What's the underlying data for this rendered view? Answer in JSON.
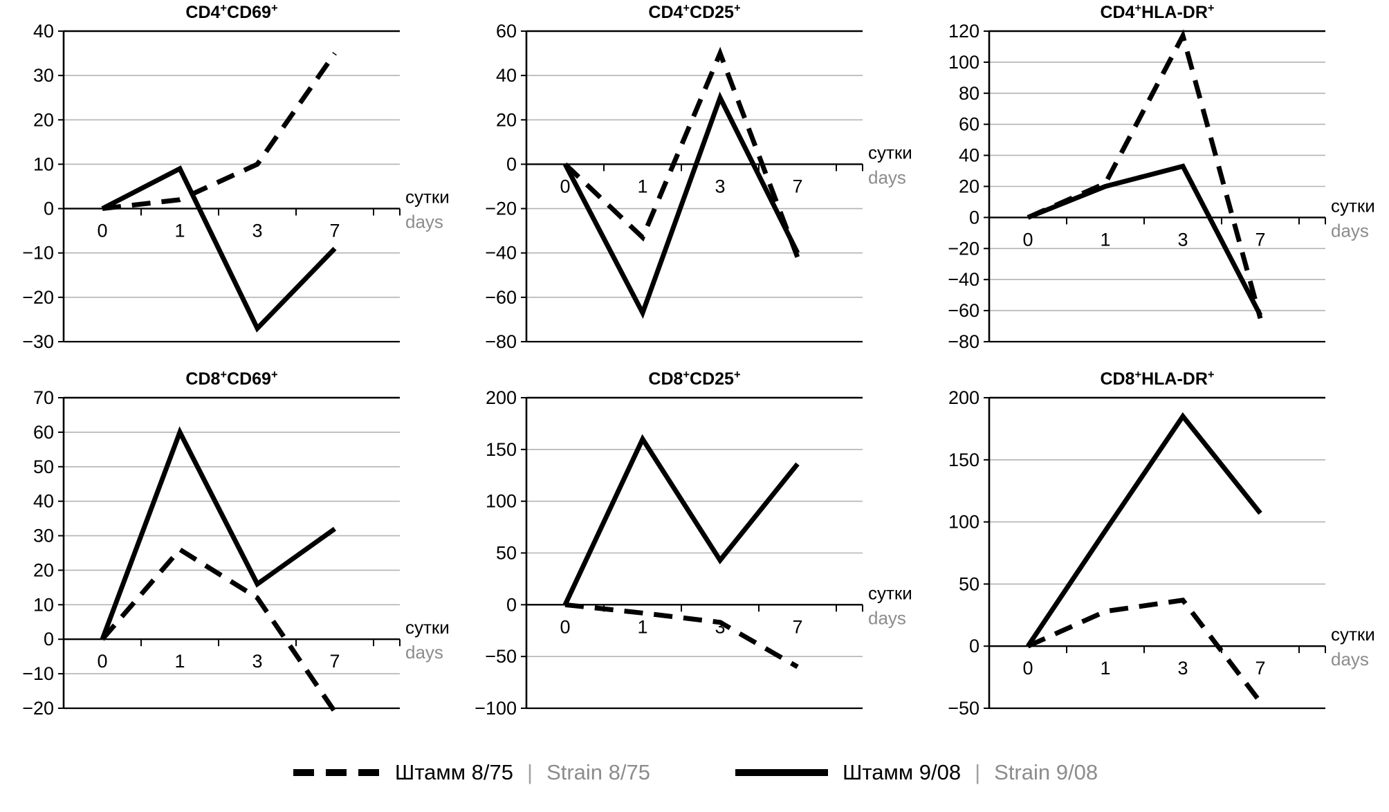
{
  "figure": {
    "background": "#ffffff"
  },
  "colors": {
    "line": "#000000",
    "grid": "#b3b3b3",
    "axis": "#000000",
    "muted": "#8c8c8c"
  },
  "axis_label": {
    "ru": "сутки",
    "en": "days"
  },
  "legend": [
    {
      "style": "dashed",
      "ru": "Штамм 8/75",
      "sep": "|",
      "en": "Strain 8/75"
    },
    {
      "style": "solid",
      "ru": "Штамм 9/08",
      "sep": "|",
      "en": "Strain 9/08"
    }
  ],
  "chart_data": [
    {
      "type": "line",
      "title": "CD4^+CD69^+",
      "categories": [
        "0",
        "1",
        "3",
        "7"
      ],
      "ylim": [
        -30,
        40
      ],
      "ystep": 10,
      "xlabel_ru": "сутки",
      "xlabel_en": "days",
      "grid": true,
      "legend_position": "bottom-shared",
      "series": [
        {
          "name": "Штамм 8/75 / Strain 8/75",
          "style": "dashed",
          "values": [
            0,
            2,
            10,
            35
          ]
        },
        {
          "name": "Штамм 9/08 / Strain 9/08",
          "style": "solid",
          "values": [
            0,
            9,
            -27,
            -9
          ]
        }
      ]
    },
    {
      "type": "line",
      "title": "CD4^+CD25^+",
      "categories": [
        "0",
        "1",
        "3",
        "7"
      ],
      "ylim": [
        -80,
        60
      ],
      "ystep": 20,
      "xlabel_ru": "сутки",
      "xlabel_en": "days",
      "grid": true,
      "legend_position": "bottom-shared",
      "series": [
        {
          "name": "Штамм 8/75 / Strain 8/75",
          "style": "dashed",
          "values": [
            0,
            -33,
            50,
            -42
          ]
        },
        {
          "name": "Штамм 9/08 / Strain 9/08",
          "style": "solid",
          "values": [
            0,
            -67,
            30,
            -40
          ]
        }
      ]
    },
    {
      "type": "line",
      "title": "CD4^+HLA-DR^+",
      "categories": [
        "0",
        "1",
        "3",
        "7"
      ],
      "ylim": [
        -80,
        120
      ],
      "ystep": 20,
      "xlabel_ru": "сутки",
      "xlabel_en": "days",
      "grid": true,
      "legend_position": "bottom-shared",
      "series": [
        {
          "name": "Штамм 8/75 / Strain 8/75",
          "style": "dashed",
          "values": [
            0,
            22,
            117,
            -65
          ]
        },
        {
          "name": "Штамм 9/08 / Strain 9/08",
          "style": "solid",
          "values": [
            0,
            20,
            33,
            -63
          ]
        }
      ]
    },
    {
      "type": "line",
      "title": "CD8^+CD69^+",
      "categories": [
        "0",
        "1",
        "3",
        "7"
      ],
      "ylim": [
        -20,
        70
      ],
      "ystep": 10,
      "xlabel_ru": "сутки",
      "xlabel_en": "days",
      "grid": true,
      "legend_position": "bottom-shared",
      "series": [
        {
          "name": "Штамм 8/75 / Strain 8/75",
          "style": "dashed",
          "values": [
            0,
            26,
            12,
            -21
          ]
        },
        {
          "name": "Штамм 9/08 / Strain 9/08",
          "style": "solid",
          "values": [
            0,
            60,
            16,
            32
          ]
        }
      ]
    },
    {
      "type": "line",
      "title": "CD8^+CD25^+",
      "categories": [
        "0",
        "1",
        "3",
        "7"
      ],
      "ylim": [
        -100,
        200
      ],
      "ystep": 50,
      "xlabel_ru": "сутки",
      "xlabel_en": "days",
      "grid": true,
      "legend_position": "bottom-shared",
      "series": [
        {
          "name": "Штамм 8/75 / Strain 8/75",
          "style": "dashed",
          "values": [
            0,
            -8,
            -17,
            -60
          ]
        },
        {
          "name": "Штамм 9/08 / Strain 9/08",
          "style": "solid",
          "values": [
            0,
            160,
            43,
            136
          ]
        }
      ]
    },
    {
      "type": "line",
      "title": "CD8^+HLA-DR^+",
      "categories": [
        "0",
        "1",
        "3",
        "7"
      ],
      "ylim": [
        -50,
        200
      ],
      "ystep": 50,
      "xlabel_ru": "сутки",
      "xlabel_en": "days",
      "grid": true,
      "legend_position": "bottom-shared",
      "series": [
        {
          "name": "Штамм 8/75 / Strain 8/75",
          "style": "dashed",
          "values": [
            0,
            28,
            37,
            -45
          ]
        },
        {
          "name": "Штамм 9/08 / Strain 9/08",
          "style": "solid",
          "values": [
            0,
            93,
            185,
            107
          ]
        }
      ]
    }
  ]
}
